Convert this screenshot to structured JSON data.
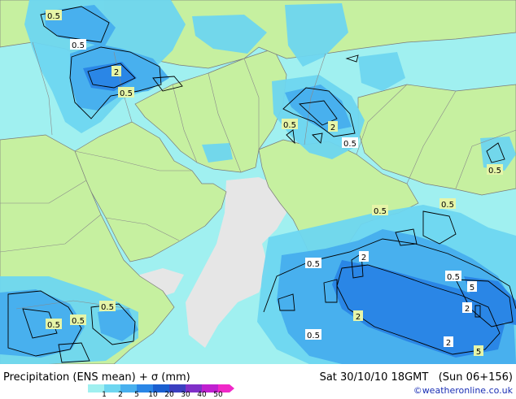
{
  "footer": {
    "title": "Precipitation (ENS mean) + σ (mm)",
    "date": "Sat 30/10/10 18GMT",
    "lead": "(Sun 06+156)",
    "credit": "©weatheronline.co.uk"
  },
  "legend": {
    "ticks": [
      "1",
      "2",
      "5",
      "10",
      "20",
      "30",
      "40",
      "50"
    ],
    "colors": [
      "#a0f0f0",
      "#6ed6f0",
      "#48b0ee",
      "#2a86e6",
      "#1a5fd0",
      "#3a3fc0",
      "#8030c8",
      "#c020d0",
      "#f028c8"
    ]
  },
  "map_colors": {
    "ocean": "#a0f0f0",
    "land": "#c6f0a0",
    "dry": "#e6e6e6",
    "precip_light": "#6ed6f0",
    "precip_medium": "#48b0ee",
    "precip_heavy": "#2a86e6",
    "border": "#8a8a8a",
    "coast": "#7a7a7a",
    "contour": "#000000"
  },
  "contour_labels": [
    "0.5",
    "0.5",
    "2",
    "0.5",
    "0.5",
    "2",
    "0.5",
    "0.5",
    "0.5",
    "0.5",
    "2",
    "0.5",
    "0.5",
    "5",
    "2",
    "2",
    "0.5",
    "2",
    "5",
    "0.5",
    "0.5",
    "0.5"
  ]
}
